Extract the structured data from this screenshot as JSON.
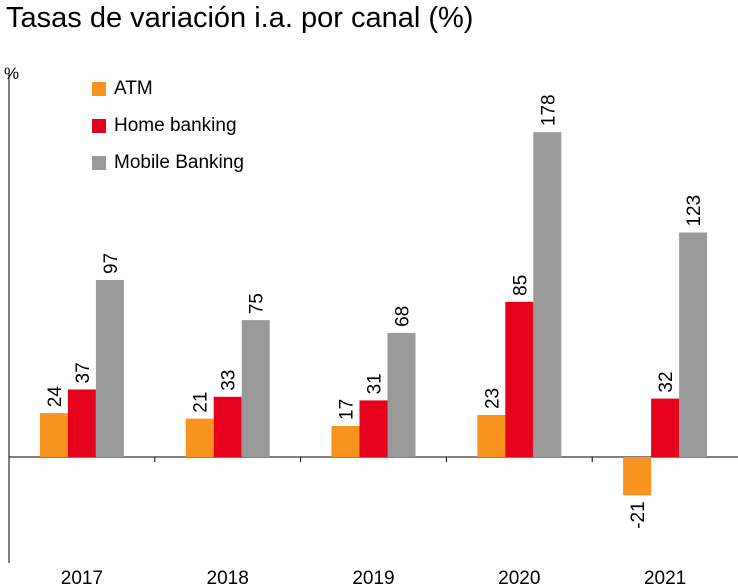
{
  "chart_data": {
    "type": "bar",
    "title": "Tasas de variación i.a. por canal (%)",
    "ylabel": "%",
    "xlabel": "",
    "categories": [
      "2017",
      "2018",
      "2019",
      "2020",
      "2021"
    ],
    "series": [
      {
        "name": "ATM",
        "color": "#F7931E",
        "values": [
          24,
          21,
          17,
          23,
          -21
        ]
      },
      {
        "name": "Home banking",
        "color": "#E5001C",
        "values": [
          37,
          33,
          31,
          85,
          32
        ]
      },
      {
        "name": "Mobile Banking",
        "color": "#999999",
        "values": [
          97,
          75,
          68,
          178,
          123
        ]
      }
    ],
    "ylim": [
      -50,
      200
    ],
    "grid": false,
    "legend_position": "top-left",
    "data_labels": true
  }
}
